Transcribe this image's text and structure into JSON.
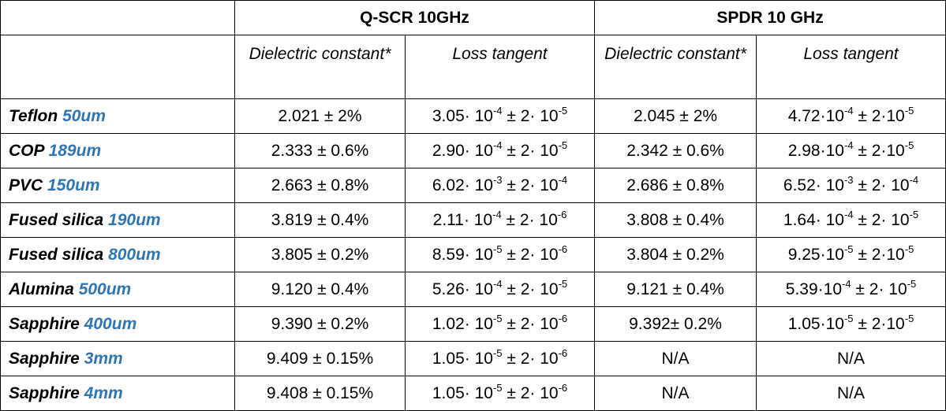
{
  "table": {
    "groups": [
      "Q-SCR 10GHz",
      "SPDR 10 GHz"
    ],
    "subheaders": [
      "Dielectric constant*",
      "Loss tangent",
      "Dielectric constant*",
      "Loss tangent"
    ],
    "rows": [
      {
        "name": "Teflon",
        "size": "50um",
        "cells": [
          "2.021 ± 2%",
          [
            "3.05· 10",
            "-4",
            " ± 2· 10",
            "-5"
          ],
          "2.045 ± 2%",
          [
            "4.72·10",
            "-4",
            " ± 2·10",
            "-5"
          ]
        ]
      },
      {
        "name": "COP",
        "size": "189um",
        "cells": [
          "2.333 ± 0.6%",
          [
            "2.90· 10",
            "-4",
            " ± 2· 10",
            "-5"
          ],
          "2.342 ± 0.6%",
          [
            "2.98·10",
            "-4",
            " ± 2·10",
            "-5"
          ]
        ]
      },
      {
        "name": "PVC",
        "size": "150um",
        "cells": [
          "2.663 ± 0.8%",
          [
            "6.02· 10",
            "-3",
            " ± 2· 10",
            "-4"
          ],
          "2.686 ± 0.8%",
          [
            "6.52· 10",
            "-3",
            " ± 2· 10",
            "-4"
          ]
        ]
      },
      {
        "name": "Fused silica",
        "size": "190um",
        "cells": [
          "3.819 ± 0.4%",
          [
            "2.11· 10",
            "-4",
            " ± 2· 10",
            "-6"
          ],
          "3.808 ± 0.4%",
          [
            "1.64· 10",
            "-4",
            " ± 2· 10",
            "-5"
          ]
        ]
      },
      {
        "name": "Fused silica",
        "size": "800um",
        "cells": [
          "3.805 ± 0.2%",
          [
            "8.59· 10",
            "-5",
            " ± 2· 10",
            "-6"
          ],
          "3.804 ± 0.2%",
          [
            "9.25·10",
            "-5",
            " ± 2·10",
            "-5"
          ]
        ]
      },
      {
        "name": "Alumina",
        "size": "500um",
        "cells": [
          "9.120 ± 0.4%",
          [
            "5.26· 10",
            "-4",
            " ± 2· 10",
            "-5"
          ],
          "9.121 ± 0.4%",
          [
            "5.39·10",
            "-4",
            " ± 2· 10",
            "-5"
          ]
        ]
      },
      {
        "name": "Sapphire",
        "size": "400um",
        "cells": [
          "9.390 ± 0.2%",
          [
            "1.02· 10",
            "-5",
            " ± 2· 10",
            "-6"
          ],
          "9.392± 0.2%",
          [
            "1.05·10",
            "-5",
            " ± 2·10",
            "-5"
          ]
        ]
      },
      {
        "name": "Sapphire",
        "size": "3mm",
        "cells": [
          "9.409 ± 0.15%",
          [
            "1.05· 10",
            "-5",
            " ± 2· 10",
            "-6"
          ],
          "N/A",
          "N/A"
        ]
      },
      {
        "name": "Sapphire",
        "size": "4mm",
        "cells": [
          "9.408 ± 0.15%",
          [
            "1.05· 10",
            "-5",
            " ± 2· 10",
            "-6"
          ],
          "N/A",
          "N/A"
        ]
      }
    ]
  }
}
